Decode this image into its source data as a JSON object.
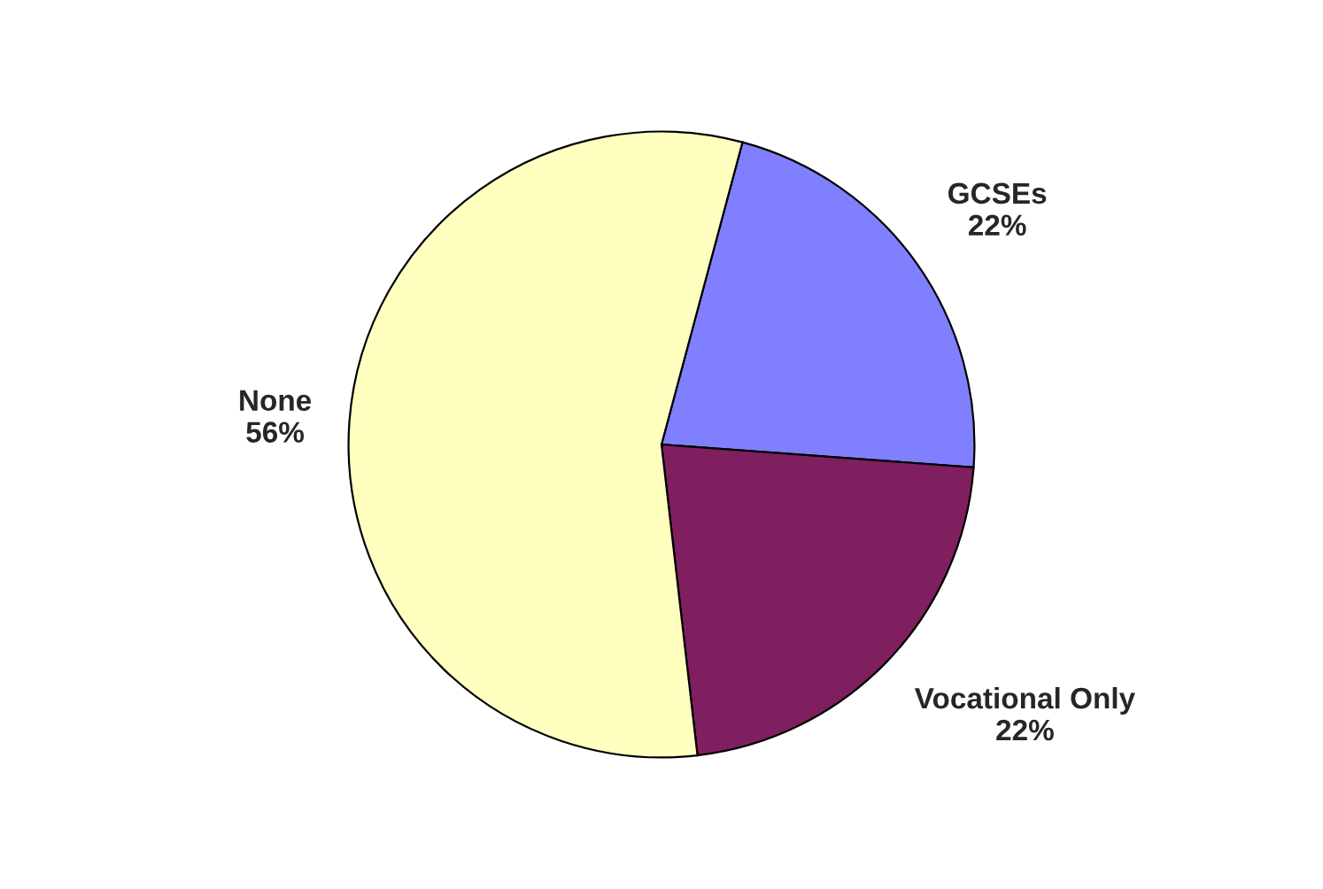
{
  "chart_data": {
    "type": "pie",
    "categories": [
      "GCSEs",
      "Vocational Only",
      "None"
    ],
    "values": [
      22,
      22,
      56
    ],
    "value_labels": [
      "22%",
      "22%",
      "56%"
    ],
    "colors": [
      "#8080ff",
      "#7f1f5f",
      "#ffffc0"
    ],
    "legend": false
  }
}
